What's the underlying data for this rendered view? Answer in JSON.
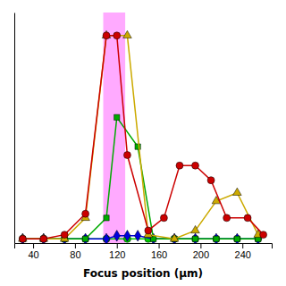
{
  "chart_data": {
    "type": "line",
    "xlabel": "Focus position (μm)",
    "xlim": [
      22,
      268
    ],
    "xticks": [
      40,
      80,
      120,
      160,
      200,
      240
    ],
    "ylim": [
      -0.02,
      1.08
    ],
    "yticks": [],
    "tick_labels": "x",
    "grid": false,
    "shading": {
      "xmin": 107,
      "xmax": 128,
      "color": "#ffaaff"
    },
    "series": [
      {
        "color": "#00cc00",
        "marker": "circle",
        "x": [
          30,
          50,
          70,
          90,
          110,
          130,
          150,
          175,
          195,
          215,
          235,
          255
        ],
        "values": [
          0.0,
          0.0,
          0.0,
          0.0,
          0.0,
          0.0,
          0.0,
          0.0,
          0.0,
          0.0,
          0.0,
          0.0
        ]
      },
      {
        "color": "#0000dd",
        "marker": "diamond",
        "x": [
          30,
          50,
          70,
          90,
          110,
          120,
          130,
          140,
          155,
          175,
          195,
          215,
          235,
          255
        ],
        "values": [
          0.0,
          0.0,
          0.0,
          0.0,
          0.0,
          0.015,
          0.015,
          0.015,
          0.0,
          0.0,
          0.0,
          0.0,
          0.0,
          0.0
        ]
      },
      {
        "color": "#00aa00",
        "marker": "square",
        "x": [
          30,
          50,
          70,
          90,
          110,
          120,
          140,
          155,
          175,
          195,
          215,
          235,
          255
        ],
        "values": [
          0.0,
          0.0,
          0.0,
          0.0,
          0.1,
          0.58,
          0.44,
          0.0,
          0.0,
          0.0,
          0.0,
          0.0,
          0.0
        ]
      },
      {
        "color": "#ccaa00",
        "marker": "triangle",
        "x": [
          30,
          50,
          70,
          90,
          110,
          130,
          150,
          175,
          195,
          215,
          235,
          255
        ],
        "values": [
          0.0,
          0.0,
          0.0,
          0.1,
          0.97,
          0.97,
          0.02,
          0.0,
          0.04,
          0.18,
          0.22,
          0.02
        ]
      },
      {
        "color": "#cc0000",
        "marker": "circle",
        "x": [
          30,
          50,
          70,
          90,
          110,
          120,
          130,
          150,
          165,
          180,
          195,
          210,
          225,
          245,
          260
        ],
        "values": [
          0.0,
          0.0,
          0.02,
          0.12,
          0.97,
          0.97,
          0.4,
          0.04,
          0.1,
          0.35,
          0.35,
          0.28,
          0.1,
          0.1,
          0.02
        ]
      }
    ]
  }
}
